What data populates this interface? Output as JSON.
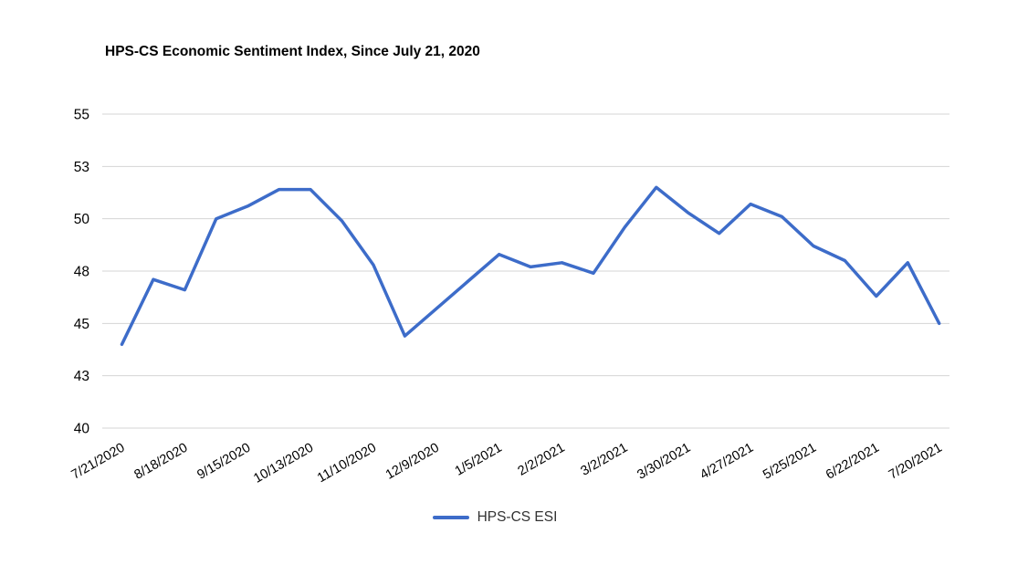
{
  "header": {
    "title": "HPS-CS Economic Sentiment Index, Since July 21, 2020"
  },
  "legend": {
    "series_label": "HPS-CS ESI"
  },
  "colors": {
    "line": "#3D6CC9",
    "gridline": "#d5d5d5",
    "axis_label": "#000000",
    "title": "#000000",
    "legend_text": "#333333",
    "background": "#ffffff"
  },
  "chart_data": {
    "type": "line",
    "title": "HPS-CS Economic Sentiment Index, Since July 21, 2020",
    "xlabel": "",
    "ylabel": "",
    "grid": true,
    "legend_position": "bottom",
    "y_axis": {
      "min": 40,
      "max": 55,
      "gridline_values": [
        55,
        52.5,
        50,
        47.5,
        45,
        42.5,
        40
      ],
      "gridline_labels": [
        "55",
        "53",
        "50",
        "48",
        "45",
        "43",
        "40"
      ]
    },
    "x_tick_labels": [
      "7/21/2020",
      "8/18/2020",
      "9/15/2020",
      "10/13/2020",
      "11/10/2020",
      "12/9/2020",
      "1/5/2021",
      "2/2/2021",
      "3/2/2021",
      "3/30/2021",
      "4/27/2021",
      "5/25/2021",
      "6/22/2021",
      "7/20/2021"
    ],
    "series": [
      {
        "name": "HPS-CS ESI",
        "color": "#3D6CC9",
        "x": [
          "7/21/2020",
          "8/4/2020",
          "8/18/2020",
          "9/1/2020",
          "9/15/2020",
          "9/29/2020",
          "10/13/2020",
          "10/27/2020",
          "11/10/2020",
          "11/24/2020",
          "12/9/2020",
          "12/22/2020",
          "1/5/2021",
          "1/19/2021",
          "2/2/2021",
          "2/16/2021",
          "3/2/2021",
          "3/16/2021",
          "3/30/2021",
          "4/13/2021",
          "4/27/2021",
          "5/11/2021",
          "5/25/2021",
          "6/8/2021",
          "6/22/2021",
          "7/6/2021",
          "7/20/2021"
        ],
        "values": [
          44.0,
          47.1,
          46.6,
          50.0,
          50.6,
          51.4,
          51.4,
          49.9,
          47.8,
          44.4,
          45.7,
          47.0,
          48.3,
          47.7,
          47.9,
          47.4,
          49.6,
          51.5,
          50.3,
          49.3,
          50.7,
          50.1,
          48.7,
          48.0,
          46.3,
          47.9,
          45.0
        ]
      }
    ]
  }
}
